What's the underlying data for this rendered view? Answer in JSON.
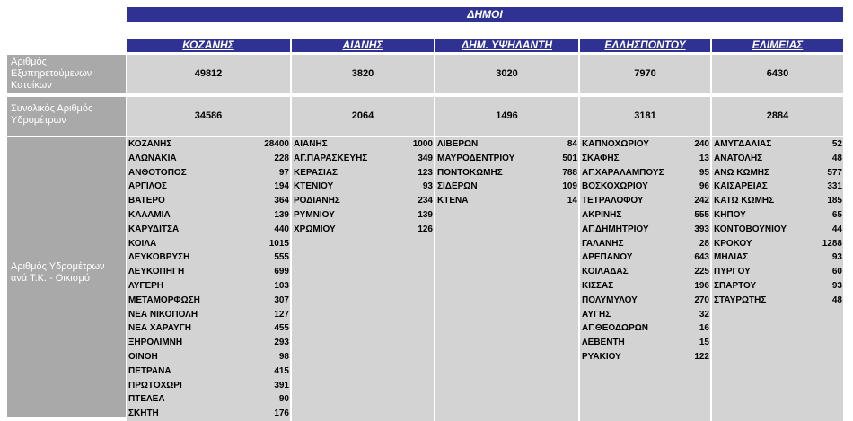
{
  "banner": "ΔΗΜΟΙ",
  "row_labels": {
    "served_residents": "Αριθμός Εξυπηρετούμενων Κατοίκων",
    "total_meters": "Συνολικός Αριθμός Υδρομέτρων",
    "meters_per_settlement": "Αριθμός Υδρομέτρων ανά Τ.Κ. - Οικισμό"
  },
  "municipalities": [
    {
      "name": "ΚΟΖΑΝΗΣ",
      "residents": "49812",
      "meters": "34586",
      "settlements": [
        [
          "ΚΟΖΑΝΗΣ",
          "28400"
        ],
        [
          "ΑΛΩΝΑΚΙΑ",
          "228"
        ],
        [
          "ΑΝΘΟΤΟΠΟΣ",
          "97"
        ],
        [
          "ΑΡΓΙΛΟΣ",
          "194"
        ],
        [
          "ΒΑΤΕΡΟ",
          "364"
        ],
        [
          "ΚΑΛΑΜΙΑ",
          "139"
        ],
        [
          "ΚΑΡΥΔΙΤΣΑ",
          "440"
        ],
        [
          "ΚΟΙΛΑ",
          "1015"
        ],
        [
          "ΛΕΥΚΟΒΡΥΣΗ",
          "555"
        ],
        [
          "ΛΕΥΚΟΠΗΓΗ",
          "699"
        ],
        [
          "ΛΥΓΕΡΗ",
          "103"
        ],
        [
          "ΜΕΤΑΜΟΡΦΩΣΗ",
          "307"
        ],
        [
          "ΝΕΑ ΝΙΚΟΠΟΛΗ",
          "127"
        ],
        [
          "ΝΕΑ ΧΑΡΑΥΓΗ",
          "455"
        ],
        [
          "ΞΗΡΟΛΙΜΝΗ",
          "293"
        ],
        [
          "ΟΙΝΟΗ",
          "98"
        ],
        [
          "ΠΕΤΡΑΝΑ",
          "415"
        ],
        [
          "ΠΡΩΤΟΧΩΡΙ",
          "391"
        ],
        [
          "ΠΤΕΛΕΑ",
          "90"
        ],
        [
          "ΣΚΗΤΗ",
          "176"
        ]
      ]
    },
    {
      "name": "ΑΙΑΝΗΣ",
      "residents": "3820",
      "meters": "2064",
      "settlements": [
        [
          "ΑΙΑΝΗΣ",
          "1000"
        ],
        [
          "ΑΓ.ΠΑΡΑΣΚΕΥΗΣ",
          "349"
        ],
        [
          "ΚΕΡΑΣΙΑΣ",
          "123"
        ],
        [
          "ΚΤΕΝΙΟΥ",
          "93"
        ],
        [
          "ΡΟΔΙΑΝΗΣ",
          "234"
        ],
        [
          "ΡΥΜΝΙΟΥ",
          "139"
        ],
        [
          "ΧΡΩΜΙΟΥ",
          "126"
        ]
      ]
    },
    {
      "name": "ΔΗΜ. ΥΨΗΛΑΝΤΗ",
      "residents": "3020",
      "meters": "1496",
      "settlements": [
        [
          "ΛΙΒΕΡΩΝ",
          "84"
        ],
        [
          "ΜΑΥΡΟΔΕΝΤΡΙΟΥ",
          "501"
        ],
        [
          "ΠΟΝΤΟΚΩΜΗΣ",
          "788"
        ],
        [
          "ΣΙΔΕΡΩΝ",
          "109"
        ],
        [
          "ΚΤΕΝΑ",
          "14"
        ]
      ]
    },
    {
      "name": "ΕΛΛΗΣΠΟΝΤΟΥ",
      "residents": "7970",
      "meters": "3181",
      "settlements": [
        [
          "ΚΑΠΝΟΧΩΡΙΟΥ",
          "240"
        ],
        [
          "ΣΚΑΦΗΣ",
          "13"
        ],
        [
          "ΑΓ.ΧΑΡΑΛΑΜΠΟΥΣ",
          "95"
        ],
        [
          "ΒΟΣΚΟΧΩΡΙΟΥ",
          "96"
        ],
        [
          "ΤΕΤΡΑΛΟΦΟΥ",
          "242"
        ],
        [
          "ΑΚΡΙΝΗΣ",
          "555"
        ],
        [
          "ΑΓ.ΔΗΜΗΤΡΙΟΥ",
          "393"
        ],
        [
          "ΓΑΛΑΝΗΣ",
          "28"
        ],
        [
          "ΔΡΕΠΑΝΟΥ",
          "643"
        ],
        [
          "ΚΟΙΛΑΔΑΣ",
          "225"
        ],
        [
          "ΚΙΣΣΑΣ",
          "196"
        ],
        [
          "ΠΟΛΥΜΥΛΟΥ",
          "270"
        ],
        [
          "ΑΥΓΗΣ",
          "32"
        ],
        [
          "ΑΓ.ΘΕΟΔΩΡΩΝ",
          "16"
        ],
        [
          "ΛΕΒΕΝΤΗ",
          "15"
        ],
        [
          "ΡΥΑΚΙΟΥ",
          "122"
        ]
      ]
    },
    {
      "name": "ΕΛΙΜΕΙΑΣ",
      "residents": "6430",
      "meters": "2884",
      "settlements": [
        [
          "ΑΜΥΓΔΑΛΙΑΣ",
          "52"
        ],
        [
          "ΑΝΑΤΟΛΗΣ",
          "48"
        ],
        [
          "ΑΝΩ ΚΩΜΗΣ",
          "577"
        ],
        [
          "ΚΑΙΣΑΡΕΙΑΣ",
          "331"
        ],
        [
          "ΚΑΤΩ ΚΩΜΗΣ",
          "185"
        ],
        [
          "ΚΗΠΟΥ",
          "65"
        ],
        [
          "ΚΟΝΤΟΒΟΥΝΙΟΥ",
          "44"
        ],
        [
          "ΚΡΟΚΟΥ",
          "1288"
        ],
        [
          "ΜΗΛΙΑΣ",
          "93"
        ],
        [
          "ΠΥΡΓΟΥ",
          "60"
        ],
        [
          "ΣΠΑΡΤΟΥ",
          "93"
        ],
        [
          "ΣΤΑΥΡΩΤΗΣ",
          "48"
        ]
      ]
    }
  ]
}
